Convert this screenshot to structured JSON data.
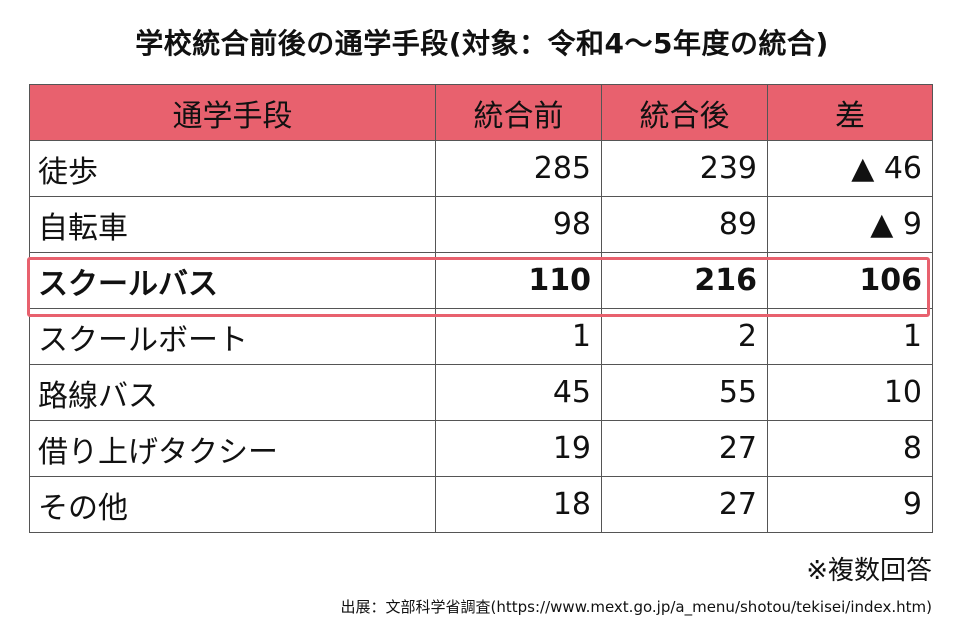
{
  "title": "学校統合前後の通学手段(対象：令和4～5年度の統合)",
  "headers": [
    "通学手段",
    "統合前",
    "統合後",
    "差"
  ],
  "rows": [
    {
      "name": "徒歩",
      "before": "285",
      "after": "239",
      "diff": "▲ 46"
    },
    {
      "name": "自転車",
      "before": "98",
      "after": "89",
      "diff": "▲ 9"
    },
    {
      "name": "スクールバス",
      "before": "110",
      "after": "216",
      "diff": "106"
    },
    {
      "name": "スクールボート",
      "before": "1",
      "after": "2",
      "diff": "1"
    },
    {
      "name": "路線バス",
      "before": "45",
      "after": "55",
      "diff": "10"
    },
    {
      "name": "借り上げタクシー",
      "before": "19",
      "after": "27",
      "diff": "8"
    },
    {
      "name": "その他",
      "before": "18",
      "after": "27",
      "diff": "9"
    }
  ],
  "note": "※複数回答",
  "source": "出展：文部科学省調査(https://www.mext.go.jp/a_menu/shotou/tekisei/index.htm)",
  "colors": {
    "header_bg": "#e8616e",
    "highlight_border": "#e8616e"
  },
  "chart_data": {
    "type": "table",
    "title": "学校統合前後の通学手段(対象：令和4～5年度の統合)",
    "columns": [
      "通学手段",
      "統合前",
      "統合後",
      "差"
    ],
    "categories": [
      "徒歩",
      "自転車",
      "スクールバス",
      "スクールボート",
      "路線バス",
      "借り上げタクシー",
      "その他"
    ],
    "series": [
      {
        "name": "統合前",
        "values": [
          285,
          98,
          110,
          1,
          45,
          19,
          18
        ]
      },
      {
        "name": "統合後",
        "values": [
          239,
          89,
          216,
          2,
          55,
          27,
          27
        ]
      },
      {
        "name": "差",
        "values": [
          -46,
          -9,
          106,
          1,
          10,
          8,
          9
        ]
      }
    ]
  }
}
